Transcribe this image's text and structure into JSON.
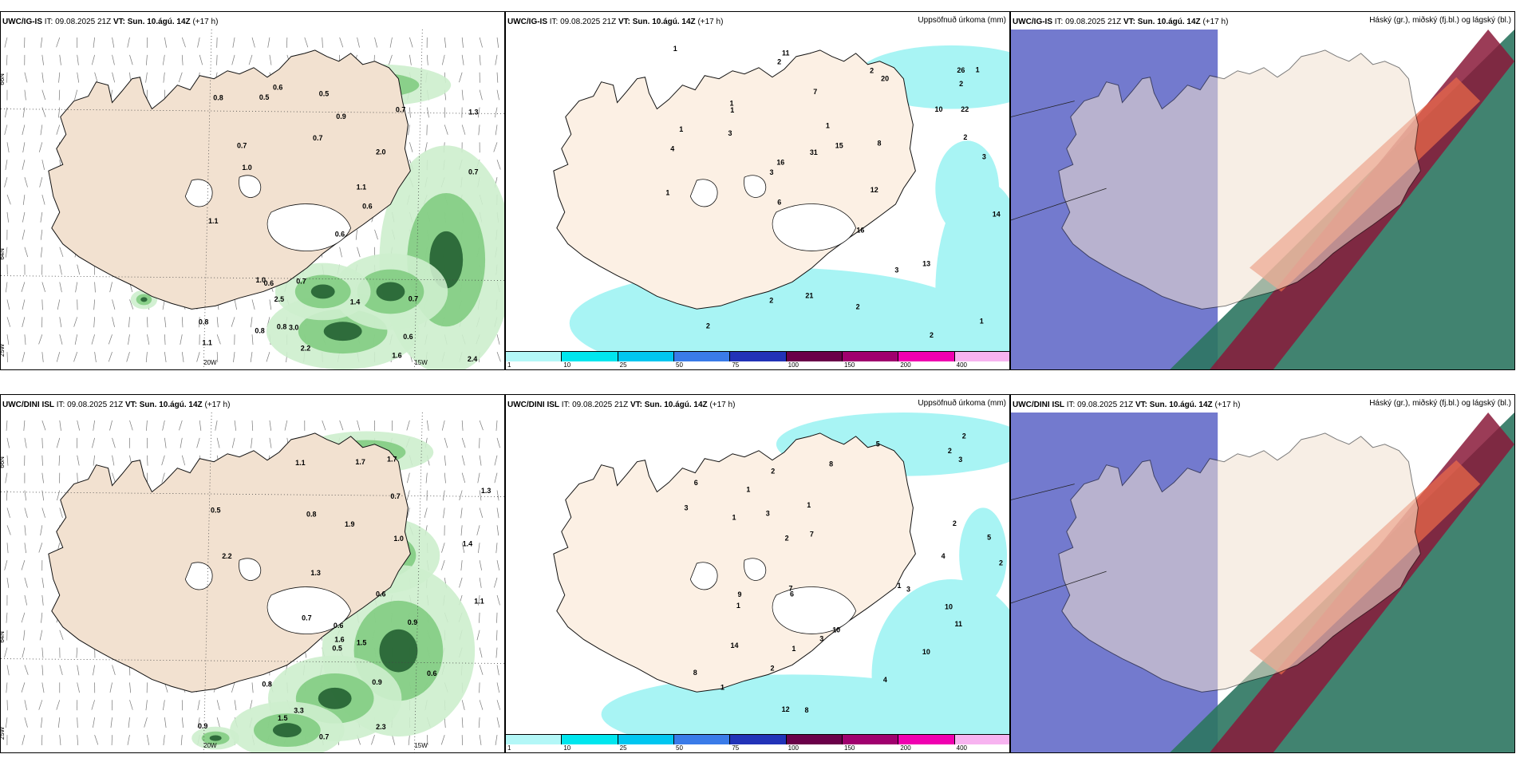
{
  "rows": [
    {
      "model": "UWC/IG-IS",
      "it_label": "IT:",
      "it_value": "09.08.2025 21Z",
      "vt_label": "VT:",
      "vt_value": "Sun. 10.ágú. 14Z",
      "lead": "(+17 h)",
      "precip_labels": [
        "0.7",
        "0.5",
        "0.9",
        "0.6",
        "1.0",
        "0.7",
        "0.7",
        "0.8",
        "0.5",
        "1.0",
        "0.7",
        "1.1",
        "0.8",
        "0.7",
        "1.1",
        "0.6",
        "0.8",
        "0.6",
        "1.3",
        "0.8",
        "1.4",
        "0.6",
        "2.0",
        "1.6",
        "0.7",
        "2.5",
        "1.1",
        "0.6",
        "2.2",
        "2.4",
        "3.0"
      ],
      "accum_labels": [
        "1",
        "2",
        "2",
        "2",
        "2",
        "1",
        "1",
        "2",
        "1",
        "1",
        "1",
        "2",
        "3",
        "4",
        "2",
        "1",
        "3",
        "2",
        "3",
        "11",
        "22",
        "21",
        "6",
        "20",
        "13",
        "14",
        "15",
        "16",
        "12",
        "10",
        "7",
        "16",
        "26",
        "31",
        "3",
        "1",
        "8"
      ]
    },
    {
      "model": "UWC/DINI ISL",
      "it_label": "IT:",
      "it_value": "09.08.2025 21Z",
      "vt_label": "VT:",
      "vt_value": "Sun. 10.ágú. 14Z",
      "lead": "(+17 h)",
      "precip_labels": [
        "0.6",
        "1.6",
        "1.1",
        "1.3",
        "0.9",
        "1.5",
        "1.4",
        "2.2",
        "1.7",
        "0.6",
        "0.5",
        "0.5",
        "0.7",
        "0.8",
        "0.8",
        "0.7",
        "1.1",
        "2.3",
        "1.0",
        "1.5",
        "1.9",
        "0.6",
        "0.7",
        "1.3",
        "3.3",
        "0.9",
        "0.9",
        "1.7"
      ],
      "accum_labels": [
        "2",
        "4",
        "4",
        "2",
        "3",
        "3",
        "1",
        "1",
        "2",
        "2",
        "6",
        "3",
        "3",
        "2",
        "1",
        "1",
        "2",
        "1",
        "1",
        "10",
        "11",
        "10",
        "8",
        "7",
        "5",
        "7",
        "6",
        "8",
        "9",
        "12",
        "14",
        "10",
        "8",
        "5",
        "1",
        "2",
        "3"
      ]
    }
  ],
  "lat_labels": [
    "66N",
    "64N"
  ],
  "lon_labels": [
    "25W",
    "20W",
    "15W"
  ],
  "precip_panel_title": "Uppsöfnuð úrkoma (mm)",
  "cloud_panel_title": "Háský (gr.), miðský (fj.bl.) og lágský (bl.)",
  "colorbar_ticks": [
    "1",
    "10",
    "25",
    "50",
    "75",
    "100",
    "150",
    "200",
    "400"
  ],
  "colorbar_colors": [
    "#b3f7f7",
    "#00e6ee",
    "#00c6f0",
    "#3a7be8",
    "#2233b8",
    "#6a0049",
    "#a0006e",
    "#f000b0",
    "#f7b3f0"
  ],
  "colors": {
    "land": "#f2e1d0",
    "land_precip": "#eadfd6",
    "accum_land": "#fcf0e4",
    "accum_cyan": "#a8f4f4",
    "precip_green_light": "#cdeecd",
    "precip_green": "#78c878",
    "precip_green_dark": "#1d5a2d",
    "cloud_blue": "#5b63c6",
    "cloud_green": "#2c7560",
    "cloud_red": "#8a1a3a",
    "cloud_orange": "#e8684a"
  }
}
